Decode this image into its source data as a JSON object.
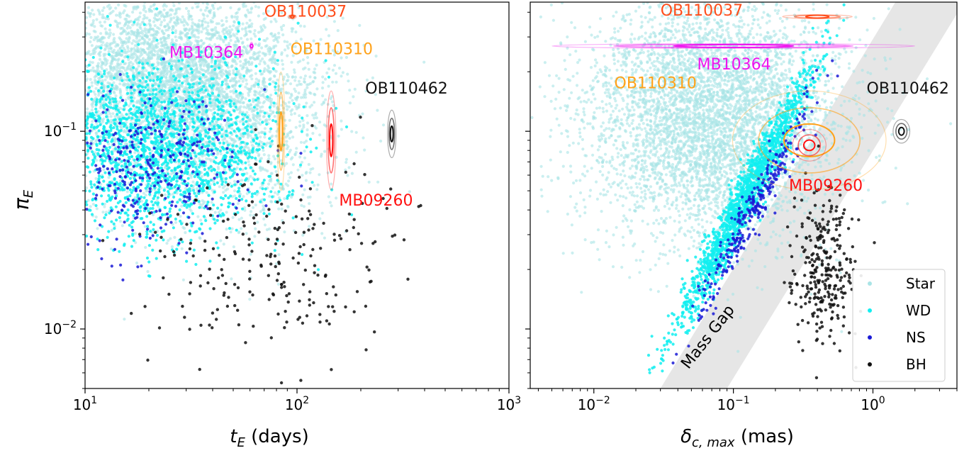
{
  "chart_data": [
    {
      "type": "scatter",
      "panel": "left",
      "x_scale": "log",
      "y_scale": "log",
      "xlim": [
        10,
        1000
      ],
      "ylim": [
        0.005,
        0.45
      ],
      "xlabel": "t_E (days)",
      "ylabel": "π_E",
      "x_ticks": [
        {
          "value": 10,
          "base": "10",
          "exp": "1"
        },
        {
          "value": 100,
          "base": "10",
          "exp": "2"
        },
        {
          "value": 1000,
          "base": "10",
          "exp": "3"
        }
      ],
      "y_ticks": [
        {
          "value": 0.1,
          "base": "10",
          "exp": "−1"
        },
        {
          "value": 0.01,
          "base": "10",
          "exp": "−2"
        }
      ],
      "series": [
        {
          "name": "Star",
          "color": "#a9e4e6",
          "count": 5000,
          "clusters": [
            {
              "mx": 25,
              "sx": 0.32,
              "my": 0.2,
              "sy": 0.22,
              "w": 0.75
            },
            {
              "mx": 40,
              "sx": 0.3,
              "my": 0.09,
              "sy": 0.25,
              "w": 0.25
            }
          ]
        },
        {
          "name": "WD",
          "color": "#12eef0",
          "count": 2000,
          "clusters": [
            {
              "mx": 22,
              "sx": 0.28,
              "my": 0.085,
              "sy": 0.22,
              "w": 1.0
            }
          ]
        },
        {
          "name": "NS",
          "color": "#1a1ad6",
          "count": 350,
          "clusters": [
            {
              "mx": 20,
              "sx": 0.22,
              "my": 0.065,
              "sy": 0.2,
              "w": 1.0
            }
          ]
        },
        {
          "name": "BH",
          "color": "#111111",
          "count": 230,
          "clusters": [
            {
              "mx": 75,
              "sx": 0.3,
              "my": 0.022,
              "sy": 0.26,
              "w": 1.0
            }
          ]
        }
      ],
      "events": [
        {
          "name": "OB110037",
          "color": "#ff4d1a",
          "x": 95,
          "y": 0.38,
          "rx_dex": 0.02,
          "ry_dex": 0.01,
          "label_x": 70,
          "label_y": 0.38
        },
        {
          "name": "MB10364",
          "color": "#ee16ee",
          "x": 61,
          "y": 0.27,
          "rx_dex": 0.005,
          "ry_dex": 0.02,
          "label_x": 25,
          "label_y": 0.235
        },
        {
          "name": "OB110310",
          "color": "#ffa21a",
          "x": 84,
          "y": 0.1,
          "rx_dex": 0.018,
          "ry_dex": 0.3,
          "label_x": 93,
          "label_y": 0.245
        },
        {
          "name": "OB110462",
          "color": "#111111",
          "x": 280,
          "y": 0.097,
          "rx_dex": 0.02,
          "ry_dex": 0.12,
          "label_x": 210,
          "label_y": 0.155
        },
        {
          "name": "MB09260",
          "color": "#ff1111",
          "x": 145,
          "y": 0.09,
          "rx_dex": 0.022,
          "ry_dex": 0.25,
          "label_x": 158,
          "label_y": 0.042
        }
      ]
    },
    {
      "type": "scatter",
      "panel": "right",
      "x_scale": "log",
      "y_scale": "log",
      "xlim": [
        0.0035,
        4.0
      ],
      "ylim": [
        0.005,
        0.45
      ],
      "xlabel": "δ_c,max (mas)",
      "ylabel": "",
      "x_ticks": [
        {
          "value": 0.01,
          "base": "10",
          "exp": "−2"
        },
        {
          "value": 0.1,
          "base": "10",
          "exp": "−1"
        },
        {
          "value": 1,
          "base": "10",
          "exp": "0"
        }
      ],
      "legend": {
        "placement": "bottom-right",
        "entries": [
          "Star",
          "WD",
          "NS",
          "BH"
        ]
      },
      "shaded_band": {
        "label": "Mass Gap",
        "color": "#e6e6e6"
      },
      "series": [
        {
          "name": "Star",
          "color": "#a9e4e6",
          "count": 5000,
          "clusters": [
            {
              "mx": 0.07,
              "sx": 0.45,
              "my": 0.12,
              "sy": 0.3,
              "w": 1.0
            }
          ]
        },
        {
          "name": "WD",
          "color": "#12eef0",
          "count": 1600,
          "clusters": [
            {
              "mx": 0.12,
              "sx": 0.25,
              "my": 0.045,
              "sy": 0.22,
              "w": 1.0
            }
          ]
        },
        {
          "name": "NS",
          "color": "#1a1ad6",
          "count": 300,
          "clusters": [
            {
              "mx": 0.14,
              "sx": 0.22,
              "my": 0.04,
              "sy": 0.2,
              "w": 1.0
            }
          ]
        },
        {
          "name": "BH",
          "color": "#111111",
          "count": 280,
          "clusters": [
            {
              "mx": 0.45,
              "sx": 0.12,
              "my": 0.02,
              "sy": 0.2,
              "w": 1.0
            }
          ]
        }
      ],
      "events": [
        {
          "name": "OB110037",
          "color": "#ff4d1a",
          "x": 0.4,
          "y": 0.38,
          "rx_dex": 0.25,
          "ry_dex": 0.01,
          "label_x": 0.03,
          "label_y": 0.385
        },
        {
          "name": "MB10364",
          "color": "#ee16ee",
          "x": 0.1,
          "y": 0.27,
          "rx_dex": 1.3,
          "ry_dex": 0.012,
          "label_x": 0.055,
          "label_y": 0.205
        },
        {
          "name": "OB110310",
          "color": "#ffa21a",
          "x": 0.35,
          "y": 0.09,
          "rx_dex": 0.55,
          "ry_dex": 0.25,
          "label_x": 0.014,
          "label_y": 0.165
        },
        {
          "name": "OB110462",
          "color": "#111111",
          "x": 1.6,
          "y": 0.1,
          "rx_dex": 0.06,
          "ry_dex": 0.06,
          "label_x": 0.9,
          "label_y": 0.155
        },
        {
          "name": "MB09260",
          "color": "#ff1111",
          "x": 0.35,
          "y": 0.085,
          "rx_dex": 0.12,
          "ry_dex": 0.08,
          "label_x": 0.25,
          "label_y": 0.05
        }
      ]
    }
  ]
}
